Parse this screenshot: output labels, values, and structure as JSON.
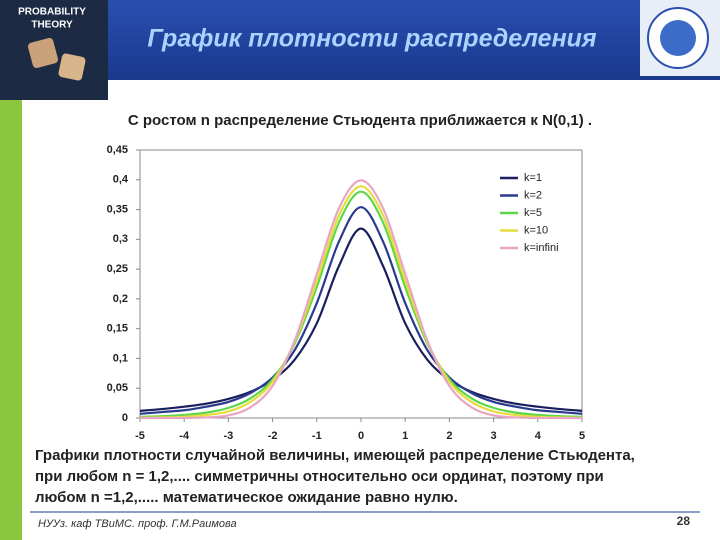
{
  "header": {
    "title": "График плотности распределения",
    "badge": [
      "PROBABILITY",
      "THEORY"
    ]
  },
  "subtitle": "С ростом n распределение Стьюдента приближается к N(0,1) .",
  "chart_data": {
    "type": "line",
    "x": [
      -5,
      -4.5,
      -4,
      -3.5,
      -3,
      -2.5,
      -2,
      -1.5,
      -1,
      -0.5,
      0,
      0.5,
      1,
      1.5,
      2,
      2.5,
      3,
      3.5,
      4,
      4.5,
      5
    ],
    "xlim": [
      -5,
      5
    ],
    "xticks": [
      -5,
      -4,
      -3,
      -2,
      -1,
      0,
      1,
      2,
      3,
      4,
      5
    ],
    "ylim": [
      0,
      0.45
    ],
    "yticks": [
      0,
      {
        "value": 0.05,
        "label": "0,05"
      },
      {
        "value": 0.1,
        "label": "0,1"
      },
      {
        "value": 0.15,
        "label": "0,15"
      },
      {
        "value": 0.2,
        "label": "0,2"
      },
      {
        "value": 0.25,
        "label": "0,25"
      },
      {
        "value": 0.3,
        "label": "0,3"
      },
      {
        "value": 0.35,
        "label": "0,35"
      },
      {
        "value": 0.4,
        "label": "0,4"
      },
      {
        "value": 0.45,
        "label": "0,45"
      }
    ],
    "legend": "upper right",
    "series": [
      {
        "name": "k=1",
        "color": "#1a1f5e",
        "values": [
          0.012,
          0.015,
          0.019,
          0.024,
          0.032,
          0.044,
          0.064,
          0.098,
          0.159,
          0.255,
          0.318,
          0.255,
          0.159,
          0.098,
          0.064,
          0.044,
          0.032,
          0.024,
          0.019,
          0.015,
          0.012
        ]
      },
      {
        "name": "k=2",
        "color": "#2b3a8f",
        "values": [
          0.007,
          0.01,
          0.013,
          0.019,
          0.027,
          0.042,
          0.068,
          0.114,
          0.193,
          0.296,
          0.354,
          0.296,
          0.193,
          0.114,
          0.068,
          0.042,
          0.027,
          0.019,
          0.013,
          0.01,
          0.007
        ]
      },
      {
        "name": "k=5",
        "color": "#5ed64a",
        "values": [
          0.002,
          0.003,
          0.005,
          0.009,
          0.017,
          0.033,
          0.065,
          0.125,
          0.22,
          0.328,
          0.38,
          0.328,
          0.22,
          0.125,
          0.065,
          0.033,
          0.017,
          0.009,
          0.005,
          0.003,
          0.002
        ]
      },
      {
        "name": "k=10",
        "color": "#e6dc3c",
        "values": [
          0.0004,
          0.0009,
          0.002,
          0.005,
          0.011,
          0.027,
          0.061,
          0.128,
          0.23,
          0.34,
          0.389,
          0.34,
          0.23,
          0.128,
          0.061,
          0.027,
          0.011,
          0.005,
          0.002,
          0.0009,
          0.0004
        ]
      },
      {
        "name": "k=infini",
        "color": "#e8a6c4",
        "values": [
          0,
          0,
          0.0001,
          0.0009,
          0.0044,
          0.018,
          0.054,
          0.13,
          0.242,
          0.352,
          0.399,
          0.352,
          0.242,
          0.13,
          0.054,
          0.018,
          0.0044,
          0.0009,
          0.0001,
          0,
          0
        ]
      }
    ]
  },
  "body": [
    "Графики плотности случайной величины, имеющей распределение Стьюдента,",
    "при любом n = 1,2,.... симметричны относительно оси ординат, поэтому при",
    "любом n =1,2,..... математическое ожидание равно нулю."
  ],
  "footer": {
    "author": "НУУз. каф ТВиМС. проф. Г.М.Раимова",
    "page": "28"
  }
}
